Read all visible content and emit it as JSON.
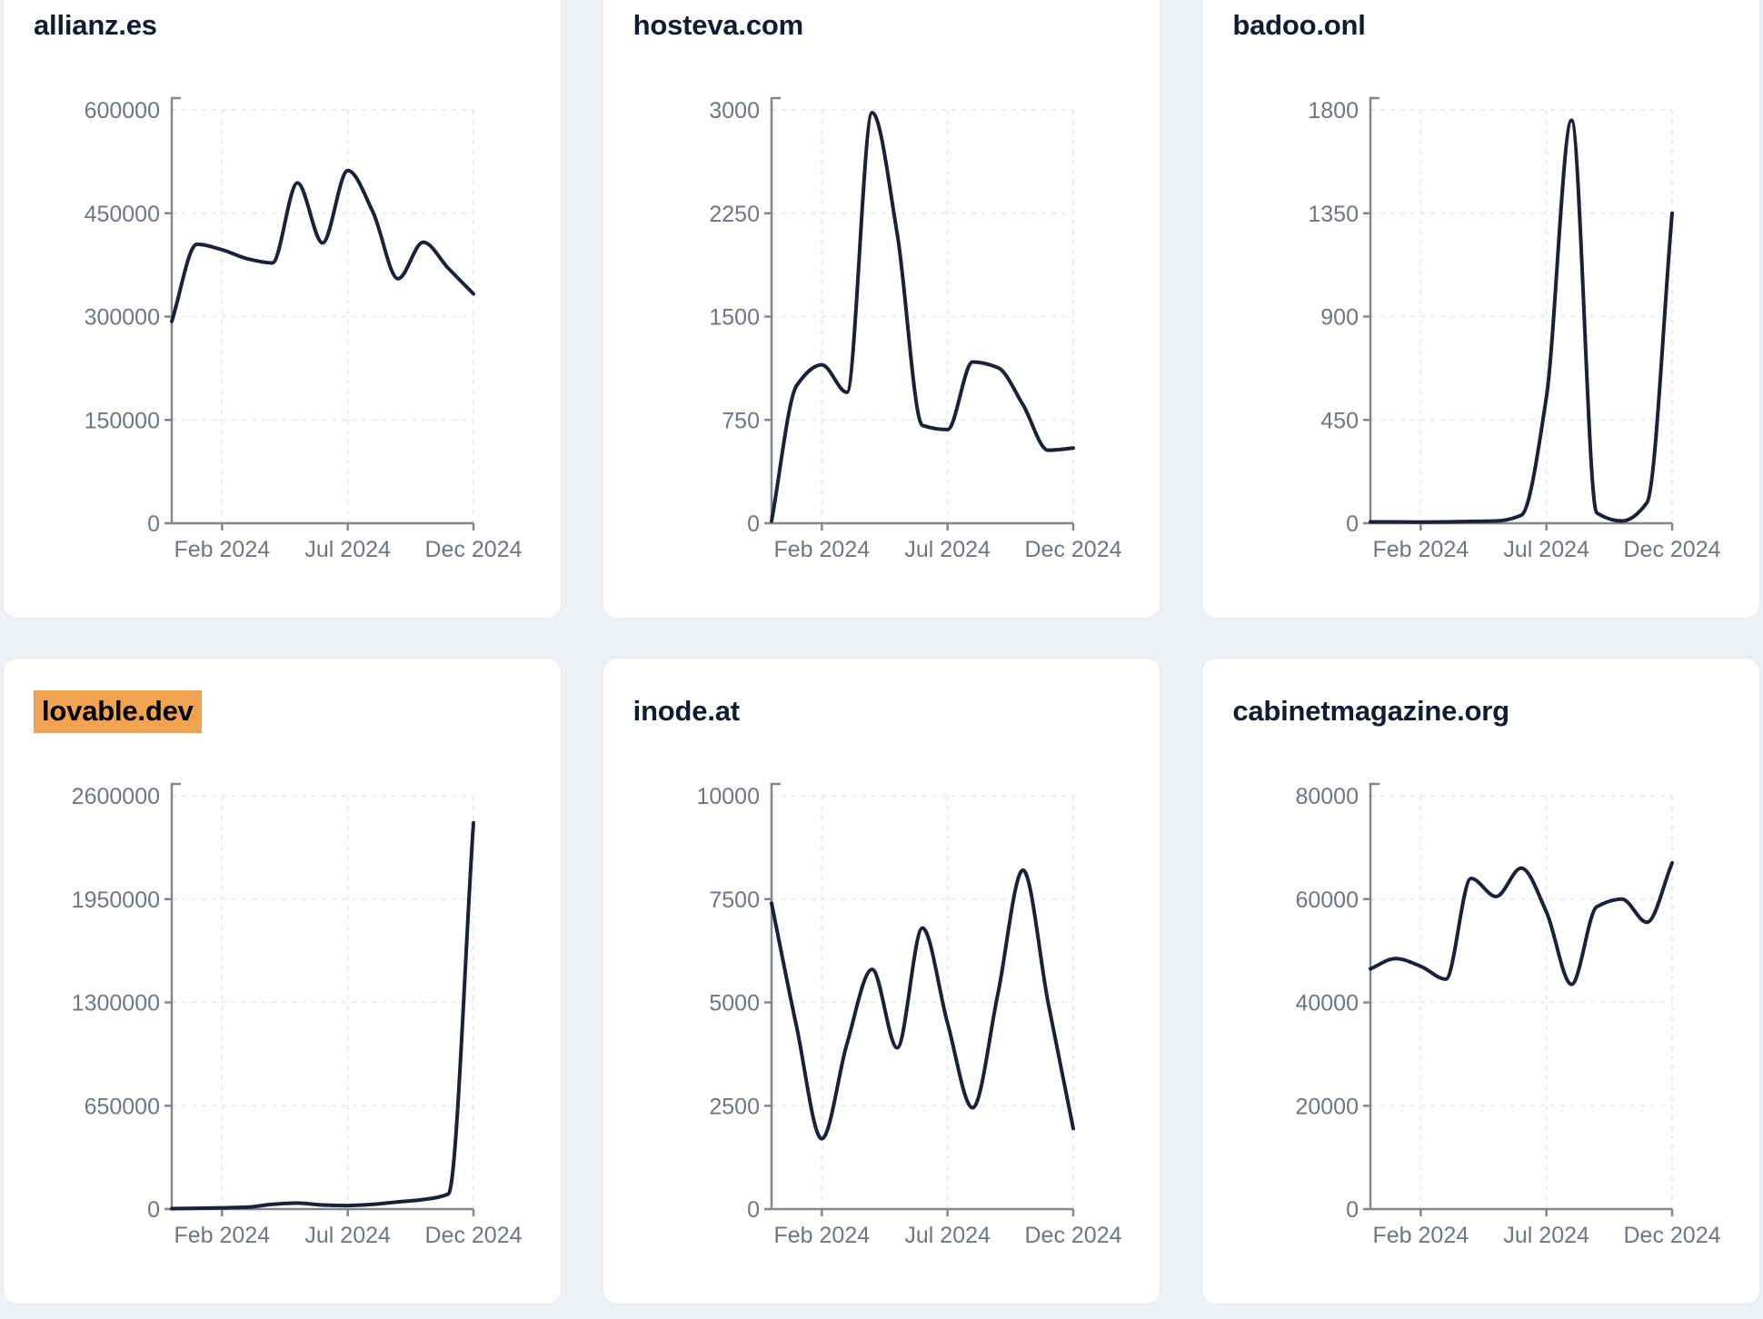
{
  "style": {
    "page_bg": "#edf0f5",
    "card_bg": "#ffffff",
    "card_border": "#e7eaf0",
    "title_color": "#131b31",
    "line_color": "#1a2138",
    "axis_color": "#82878f",
    "grid_color": "#e9ebef",
    "tick_label_color": "#6f7680",
    "highlight_bg": "#f0a351"
  },
  "months": [
    "Dec 2023",
    "Jan 2024",
    "Feb 2024",
    "Mar 2024",
    "Apr 2024",
    "May 2024",
    "Jun 2024",
    "Jul 2024",
    "Aug 2024",
    "Sep 2024",
    "Oct 2024",
    "Nov 2024",
    "Dec 2024"
  ],
  "chart_data": [
    {
      "type": "line",
      "title": "allianz.es",
      "highlighted": false,
      "values": [
        293000,
        405000,
        397000,
        384000,
        378000,
        494000,
        407000,
        512000,
        452000,
        355000,
        408000,
        370000,
        333000
      ],
      "ylim": [
        0,
        600000
      ],
      "y_ticks": [
        0,
        150000,
        300000,
        450000,
        600000
      ],
      "x_tick_labels": [
        "Feb 2024",
        "Jul 2024",
        "Dec 2024"
      ],
      "x_tick_indices": [
        2,
        7,
        12
      ],
      "grid": "dashed",
      "legend": "none"
    },
    {
      "type": "line",
      "title": "hosteva.com",
      "highlighted": false,
      "values": [
        15,
        1000,
        1150,
        950,
        2980,
        2100,
        710,
        680,
        1170,
        1130,
        860,
        530,
        545
      ],
      "ylim": [
        0,
        3000
      ],
      "y_ticks": [
        0,
        750,
        1500,
        2250,
        3000
      ],
      "x_tick_labels": [
        "Feb 2024",
        "Jul 2024",
        "Dec 2024"
      ],
      "x_tick_indices": [
        2,
        7,
        12
      ],
      "grid": "dashed",
      "legend": "none"
    },
    {
      "type": "line",
      "title": "badoo.onl",
      "highlighted": false,
      "values": [
        6,
        6,
        5,
        6,
        8,
        10,
        35,
        550,
        1755,
        45,
        10,
        90,
        1350
      ],
      "ylim": [
        0,
        1800
      ],
      "y_ticks": [
        0,
        450,
        900,
        1350,
        1800
      ],
      "x_tick_labels": [
        "Feb 2024",
        "Jul 2024",
        "Dec 2024"
      ],
      "x_tick_indices": [
        2,
        7,
        12
      ],
      "grid": "dashed",
      "legend": "none"
    },
    {
      "type": "line",
      "title": "lovable.dev",
      "highlighted": true,
      "values": [
        3000,
        5000,
        8000,
        12000,
        30000,
        38000,
        26000,
        22000,
        30000,
        45000,
        60000,
        95000,
        2430000
      ],
      "ylim": [
        0,
        2600000
      ],
      "y_ticks": [
        0,
        650000,
        1300000,
        1950000,
        2600000
      ],
      "x_tick_labels": [
        "Feb 2024",
        "Jul 2024",
        "Dec 2024"
      ],
      "x_tick_indices": [
        2,
        7,
        12
      ],
      "grid": "dashed",
      "legend": "none"
    },
    {
      "type": "line",
      "title": "inode.at",
      "highlighted": false,
      "values": [
        7400,
        4400,
        1700,
        4000,
        5800,
        3900,
        6800,
        4500,
        2450,
        5200,
        8200,
        5000,
        1950
      ],
      "ylim": [
        0,
        10000
      ],
      "y_ticks": [
        0,
        2500,
        5000,
        7500,
        10000
      ],
      "x_tick_labels": [
        "Feb 2024",
        "Jul 2024",
        "Dec 2024"
      ],
      "x_tick_indices": [
        2,
        7,
        12
      ],
      "grid": "dashed",
      "legend": "none"
    },
    {
      "type": "line",
      "title": "cabinetmagazine.org",
      "highlighted": false,
      "values": [
        46500,
        48500,
        47000,
        44500,
        64000,
        60500,
        66000,
        57500,
        43500,
        58500,
        60000,
        55500,
        67000
      ],
      "ylim": [
        0,
        80000
      ],
      "y_ticks": [
        0,
        20000,
        40000,
        60000,
        80000
      ],
      "x_tick_labels": [
        "Feb 2024",
        "Jul 2024",
        "Dec 2024"
      ],
      "x_tick_indices": [
        2,
        7,
        12
      ],
      "grid": "dashed",
      "legend": "none"
    }
  ]
}
